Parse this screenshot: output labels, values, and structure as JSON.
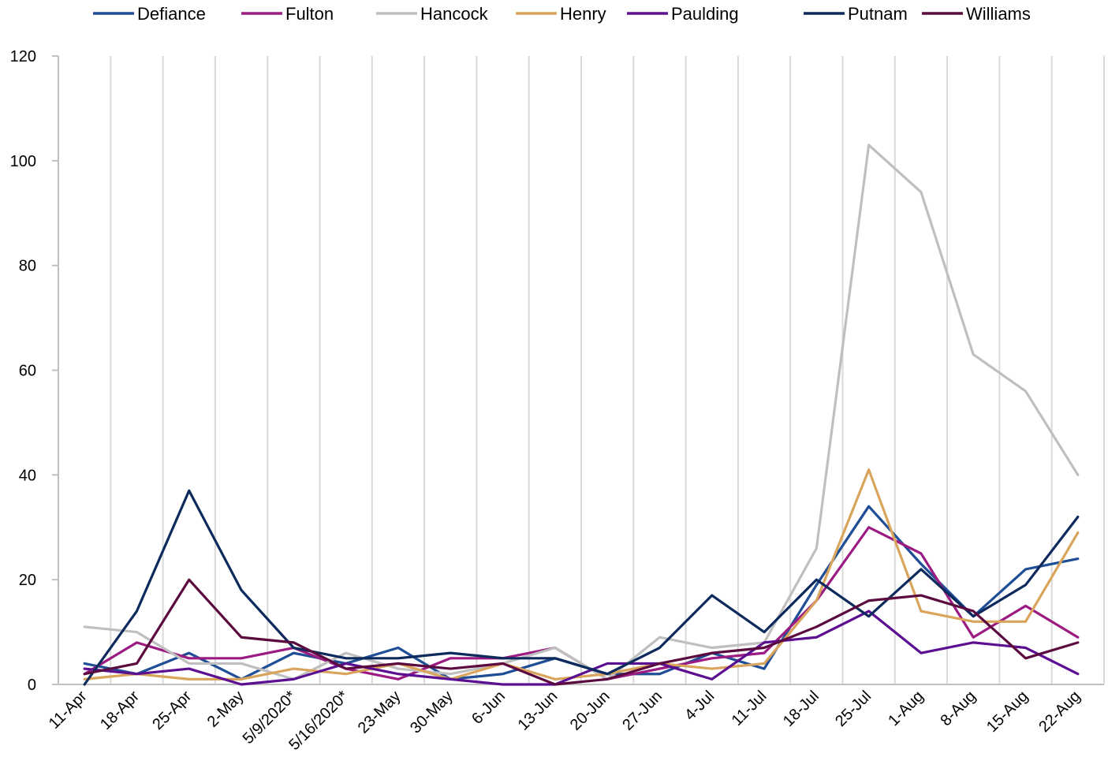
{
  "chart_data": {
    "type": "line",
    "title": "",
    "xlabel": "",
    "ylabel": "",
    "ylim": [
      0,
      120
    ],
    "yticks": [
      "0",
      "20",
      "40",
      "60",
      "80",
      "100",
      "120"
    ],
    "grid": "vertical",
    "legend_position": "top",
    "categories": [
      "11-Apr",
      "18-Apr",
      "25-Apr",
      "2-May",
      "5/9/2020*",
      "5/16/2020*",
      "23-May",
      "30-May",
      "6-Jun",
      "13-Jun",
      "20-Jun",
      "27-Jun",
      "4-Jul",
      "11-Jul",
      "18-Jul",
      "25-Jul",
      "1-Aug",
      "8-Aug",
      "15-Aug",
      "22-Aug"
    ],
    "series": [
      {
        "name": "Defiance",
        "color": "#1f4e96",
        "values": [
          4,
          2,
          6,
          1,
          6,
          4,
          7,
          1,
          2,
          5,
          2,
          2,
          6,
          3,
          19,
          34,
          23,
          13,
          22,
          24
        ]
      },
      {
        "name": "Fulton",
        "color": "#9b1b83",
        "values": [
          2,
          8,
          5,
          5,
          7,
          3,
          1,
          5,
          5,
          7,
          1,
          3,
          5,
          6,
          16,
          30,
          25,
          9,
          15,
          9
        ]
      },
      {
        "name": "Hancock",
        "color": "#bfbfbf",
        "values": [
          11,
          10,
          4,
          4,
          1,
          6,
          3,
          2,
          4,
          7,
          1,
          9,
          7,
          8,
          26,
          103,
          94,
          63,
          56,
          40
        ]
      },
      {
        "name": "Henry",
        "color": "#d9a45b",
        "values": [
          1,
          2,
          1,
          1,
          3,
          2,
          4,
          1,
          4,
          1,
          2,
          4,
          3,
          4,
          16,
          41,
          14,
          12,
          12,
          29
        ]
      },
      {
        "name": "Paulding",
        "color": "#5c0f91",
        "values": [
          3,
          2,
          3,
          0,
          1,
          4,
          2,
          1,
          0,
          0,
          4,
          4,
          1,
          8,
          9,
          14,
          6,
          8,
          7,
          2
        ]
      },
      {
        "name": "Putnam",
        "color": "#0d2a5c",
        "values": [
          0,
          14,
          37,
          18,
          7,
          5,
          5,
          6,
          5,
          5,
          2,
          7,
          17,
          10,
          20,
          13,
          22,
          13,
          19,
          32
        ]
      },
      {
        "name": "Williams",
        "color": "#5a0a3e",
        "values": [
          2,
          4,
          20,
          9,
          8,
          3,
          4,
          3,
          4,
          0,
          1,
          4,
          6,
          7,
          11,
          16,
          17,
          14,
          5,
          8
        ]
      }
    ]
  }
}
